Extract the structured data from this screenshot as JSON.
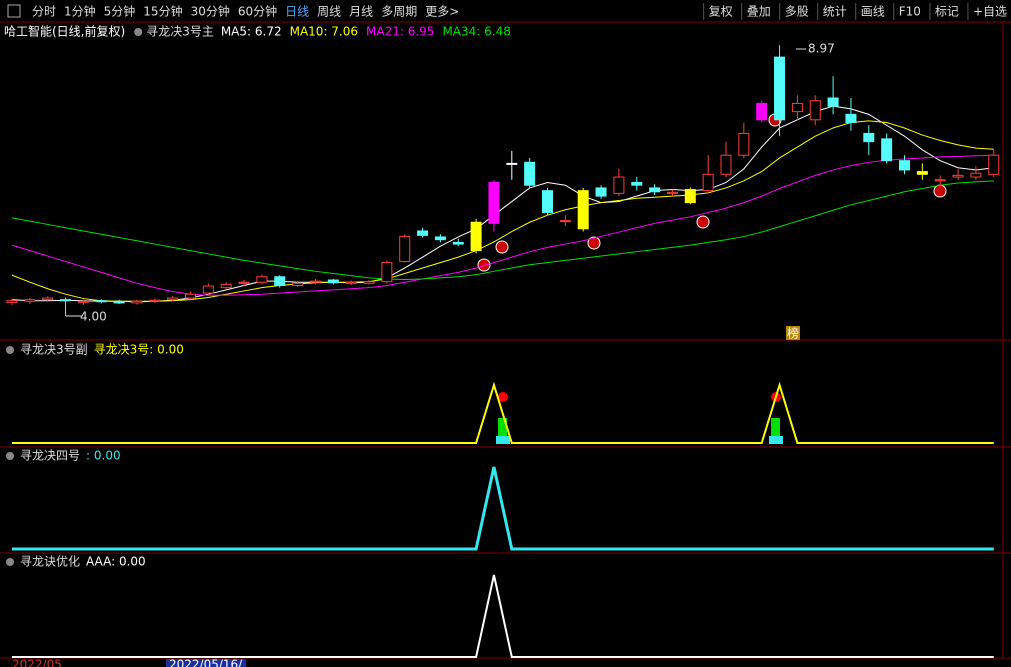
{
  "toolbar": {
    "left": [
      "分时",
      "1分钟",
      "5分钟",
      "15分钟",
      "30分钟",
      "60分钟",
      "日线",
      "周线",
      "月线",
      "多周期",
      "更多>"
    ],
    "active": "日线",
    "right": [
      "复权",
      "叠加",
      "多股",
      "统计",
      "画线",
      "F10",
      "标记",
      "+自选"
    ]
  },
  "security": "哈工智能(日线,前复权)",
  "footer": {
    "dates": [
      "2022/05",
      "2022/05/16/"
    ]
  },
  "chart_data": [
    {
      "type": "candlestick",
      "title": "寻龙决3号主",
      "high_label": "8.97",
      "low_label": "4.00",
      "marker": "榜",
      "up_color": "#ff3c3c",
      "down_color": "#54fcfc",
      "candles": [
        {
          "open": 4.25,
          "high": 4.32,
          "low": 4.2,
          "close": 4.28
        },
        {
          "open": 4.27,
          "high": 4.33,
          "low": 4.22,
          "close": 4.3
        },
        {
          "open": 4.3,
          "high": 4.36,
          "low": 4.26,
          "close": 4.33
        },
        {
          "open": 4.3,
          "high": 4.34,
          "low": 4.0,
          "close": 4.28
        },
        {
          "open": 4.25,
          "high": 4.3,
          "low": 4.2,
          "close": 4.27
        },
        {
          "open": 4.28,
          "high": 4.31,
          "low": 4.23,
          "close": 4.27
        },
        {
          "open": 4.26,
          "high": 4.3,
          "low": 4.22,
          "close": 4.24
        },
        {
          "open": 4.24,
          "high": 4.3,
          "low": 4.21,
          "close": 4.27
        },
        {
          "open": 4.27,
          "high": 4.32,
          "low": 4.24,
          "close": 4.29
        },
        {
          "open": 4.3,
          "high": 4.37,
          "low": 4.27,
          "close": 4.33
        },
        {
          "open": 4.33,
          "high": 4.45,
          "low": 4.31,
          "close": 4.4
        },
        {
          "open": 4.42,
          "high": 4.6,
          "low": 4.38,
          "close": 4.55
        },
        {
          "open": 4.52,
          "high": 4.62,
          "low": 4.5,
          "close": 4.58
        },
        {
          "open": 4.6,
          "high": 4.66,
          "low": 4.55,
          "close": 4.62
        },
        {
          "open": 4.62,
          "high": 4.76,
          "low": 4.58,
          "close": 4.72
        },
        {
          "open": 4.72,
          "high": 4.75,
          "low": 4.52,
          "close": 4.56
        },
        {
          "open": 4.56,
          "high": 4.64,
          "low": 4.53,
          "close": 4.6
        },
        {
          "open": 4.62,
          "high": 4.68,
          "low": 4.58,
          "close": 4.64
        },
        {
          "open": 4.66,
          "high": 4.68,
          "low": 4.58,
          "close": 4.61
        },
        {
          "open": 4.6,
          "high": 4.65,
          "low": 4.57,
          "close": 4.62
        },
        {
          "open": 4.6,
          "high": 4.66,
          "low": 4.58,
          "close": 4.63
        },
        {
          "open": 4.63,
          "high": 5.02,
          "low": 4.6,
          "close": 4.98
        },
        {
          "open": 5.0,
          "high": 5.5,
          "low": 4.98,
          "close": 5.46
        },
        {
          "open": 5.56,
          "high": 5.62,
          "low": 5.44,
          "close": 5.48
        },
        {
          "open": 5.45,
          "high": 5.5,
          "low": 5.35,
          "close": 5.4
        },
        {
          "open": 5.35,
          "high": 5.42,
          "low": 5.28,
          "close": 5.32
        },
        {
          "open": 5.2,
          "high": 5.78,
          "low": 5.15,
          "close": 5.72,
          "color": "#ffff00"
        },
        {
          "open": 5.7,
          "high": 6.5,
          "low": 5.55,
          "close": 6.45,
          "color": "#ff00ff"
        },
        {
          "open": 6.8,
          "high": 7.03,
          "low": 6.5,
          "close": 6.8,
          "color": "#ffffff"
        },
        {
          "open": 6.82,
          "high": 6.9,
          "low": 6.35,
          "close": 6.4
        },
        {
          "open": 6.3,
          "high": 6.35,
          "low": 5.85,
          "close": 5.9
        },
        {
          "open": 5.75,
          "high": 5.85,
          "low": 5.65,
          "close": 5.75
        },
        {
          "open": 6.3,
          "high": 6.35,
          "low": 5.55,
          "close": 5.6,
          "color": "#ffff00"
        },
        {
          "open": 6.35,
          "high": 6.4,
          "low": 6.15,
          "close": 6.2
        },
        {
          "open": 6.25,
          "high": 6.7,
          "low": 6.2,
          "close": 6.55
        },
        {
          "open": 6.45,
          "high": 6.55,
          "low": 6.3,
          "close": 6.4
        },
        {
          "open": 6.35,
          "high": 6.42,
          "low": 6.22,
          "close": 6.28
        },
        {
          "open": 6.25,
          "high": 6.32,
          "low": 6.2,
          "close": 6.27
        },
        {
          "open": 6.32,
          "high": 6.36,
          "low": 6.05,
          "close": 6.08,
          "color": "#ffff00"
        },
        {
          "open": 6.3,
          "high": 6.95,
          "low": 6.25,
          "close": 6.6
        },
        {
          "open": 6.6,
          "high": 7.2,
          "low": 6.55,
          "close": 6.95
        },
        {
          "open": 6.95,
          "high": 7.55,
          "low": 6.9,
          "close": 7.35
        },
        {
          "open": 7.6,
          "high": 7.95,
          "low": 7.55,
          "close": 7.9,
          "color": "#ff00ff"
        },
        {
          "open": 8.75,
          "high": 8.97,
          "low": 7.3,
          "close": 7.6
        },
        {
          "open": 7.75,
          "high": 8.05,
          "low": 7.6,
          "close": 7.9
        },
        {
          "open": 7.6,
          "high": 8.05,
          "low": 7.5,
          "close": 7.95
        },
        {
          "open": 8.0,
          "high": 8.4,
          "low": 7.7,
          "close": 7.85
        },
        {
          "open": 7.7,
          "high": 8.0,
          "low": 7.4,
          "close": 7.55
        },
        {
          "open": 7.35,
          "high": 7.5,
          "low": 6.95,
          "close": 7.2
        },
        {
          "open": 7.25,
          "high": 7.35,
          "low": 6.8,
          "close": 6.85
        },
        {
          "open": 6.85,
          "high": 6.95,
          "low": 6.6,
          "close": 6.68
        },
        {
          "open": 6.65,
          "high": 6.8,
          "low": 6.5,
          "close": 6.6,
          "color": "#ffff00"
        },
        {
          "open": 6.48,
          "high": 6.58,
          "low": 6.4,
          "close": 6.5
        },
        {
          "open": 6.55,
          "high": 6.7,
          "low": 6.5,
          "close": 6.58
        },
        {
          "open": 6.55,
          "high": 6.75,
          "low": 6.5,
          "close": 6.62
        },
        {
          "open": 6.6,
          "high": 7.05,
          "low": 6.55,
          "close": 6.95
        }
      ],
      "series": [
        {
          "name": "MA5: 6.72",
          "color": "#ffffff",
          "values": [
            4.3,
            4.28,
            4.28,
            4.29,
            4.28,
            4.27,
            4.27,
            4.26,
            4.27,
            4.29,
            4.33,
            4.4,
            4.48,
            4.56,
            4.64,
            4.64,
            4.62,
            4.62,
            4.62,
            4.61,
            4.62,
            4.7,
            4.88,
            5.08,
            5.28,
            5.45,
            5.6,
            5.85,
            6.1,
            6.35,
            6.45,
            6.4,
            6.2,
            6.08,
            6.1,
            6.2,
            6.3,
            6.32,
            6.3,
            6.32,
            6.45,
            6.7,
            7.1,
            7.45,
            7.6,
            7.75,
            7.85,
            7.8,
            7.7,
            7.5,
            7.3,
            7.05,
            6.85,
            6.72,
            6.68,
            6.72
          ]
        },
        {
          "name": "MA10: 7.06",
          "color": "#ffff00",
          "values": [
            4.75,
            4.62,
            4.5,
            4.4,
            4.32,
            4.28,
            4.27,
            4.27,
            4.27,
            4.28,
            4.3,
            4.34,
            4.4,
            4.46,
            4.52,
            4.56,
            4.59,
            4.61,
            4.62,
            4.62,
            4.63,
            4.68,
            4.78,
            4.88,
            4.98,
            5.08,
            5.2,
            5.36,
            5.55,
            5.72,
            5.85,
            5.95,
            6.02,
            6.08,
            6.12,
            6.16,
            6.18,
            6.2,
            6.22,
            6.26,
            6.35,
            6.48,
            6.65,
            6.9,
            7.1,
            7.3,
            7.45,
            7.55,
            7.58,
            7.55,
            7.45,
            7.32,
            7.22,
            7.14,
            7.08,
            7.06
          ]
        },
        {
          "name": "MA21: 6.95",
          "color": "#ff00ff",
          "values": [
            5.3,
            5.2,
            5.1,
            5.0,
            4.9,
            4.8,
            4.7,
            4.6,
            4.52,
            4.45,
            4.4,
            4.38,
            4.38,
            4.39,
            4.4,
            4.42,
            4.44,
            4.46,
            4.48,
            4.5,
            4.52,
            4.56,
            4.62,
            4.68,
            4.74,
            4.8,
            4.88,
            4.98,
            5.08,
            5.18,
            5.26,
            5.32,
            5.38,
            5.46,
            5.54,
            5.62,
            5.7,
            5.76,
            5.82,
            5.9,
            5.98,
            6.08,
            6.2,
            6.34,
            6.46,
            6.58,
            6.68,
            6.76,
            6.82,
            6.86,
            6.88,
            6.9,
            6.92,
            6.93,
            6.94,
            6.95
          ]
        },
        {
          "name": "MA34: 6.48",
          "color": "#00e000",
          "values": [
            5.8,
            5.74,
            5.68,
            5.62,
            5.56,
            5.5,
            5.44,
            5.38,
            5.32,
            5.26,
            5.2,
            5.14,
            5.08,
            5.02,
            4.97,
            4.92,
            4.87,
            4.82,
            4.78,
            4.74,
            4.7,
            4.68,
            4.67,
            4.68,
            4.7,
            4.72,
            4.76,
            4.82,
            4.88,
            4.94,
            4.98,
            5.02,
            5.06,
            5.1,
            5.14,
            5.18,
            5.22,
            5.26,
            5.3,
            5.35,
            5.4,
            5.46,
            5.54,
            5.64,
            5.74,
            5.84,
            5.94,
            6.04,
            6.12,
            6.2,
            6.28,
            6.34,
            6.4,
            6.44,
            6.46,
            6.48
          ]
        }
      ]
    },
    {
      "type": "line",
      "title": "寻龙决3号副",
      "series": [
        {
          "name": "寻龙决3号: 0.00",
          "color": "#ffff00",
          "values": [
            0,
            0,
            0,
            0,
            0,
            0,
            0,
            0,
            0,
            0,
            0,
            0,
            0,
            0,
            0,
            0,
            0,
            0,
            0,
            0,
            0,
            0,
            0,
            0,
            0,
            0,
            0,
            1,
            0,
            0,
            0,
            0,
            0,
            0,
            0,
            0,
            0,
            0,
            0,
            0,
            0,
            0,
            0,
            1,
            0,
            0,
            0,
            0,
            0,
            0,
            0,
            0,
            0,
            0,
            0,
            0
          ]
        }
      ]
    },
    {
      "type": "line",
      "title": "寻龙决四号",
      "series": [
        {
          "name": ": 0.00",
          "color": "#33e6f0",
          "values": [
            0,
            0,
            0,
            0,
            0,
            0,
            0,
            0,
            0,
            0,
            0,
            0,
            0,
            0,
            0,
            0,
            0,
            0,
            0,
            0,
            0,
            0,
            0,
            0,
            0,
            0,
            0,
            1,
            0,
            0,
            0,
            0,
            0,
            0,
            0,
            0,
            0,
            0,
            0,
            0,
            0,
            0,
            0,
            0,
            0,
            0,
            0,
            0,
            0,
            0,
            0,
            0,
            0,
            0,
            0,
            0
          ]
        }
      ]
    },
    {
      "type": "line",
      "title": "寻龙诀优化",
      "series": [
        {
          "name": "AAA: 0.00",
          "color": "#ffffff",
          "values": [
            0,
            0,
            0,
            0,
            0,
            0,
            0,
            0,
            0,
            0,
            0,
            0,
            0,
            0,
            0,
            0,
            0,
            0,
            0,
            0,
            0,
            0,
            0,
            0,
            0,
            0,
            0,
            1,
            0,
            0,
            0,
            0,
            0,
            0,
            0,
            0,
            0,
            0,
            0,
            0,
            0,
            0,
            0,
            0,
            0,
            0,
            0,
            0,
            0,
            0,
            0,
            0,
            0,
            0,
            0,
            0
          ]
        }
      ]
    }
  ]
}
